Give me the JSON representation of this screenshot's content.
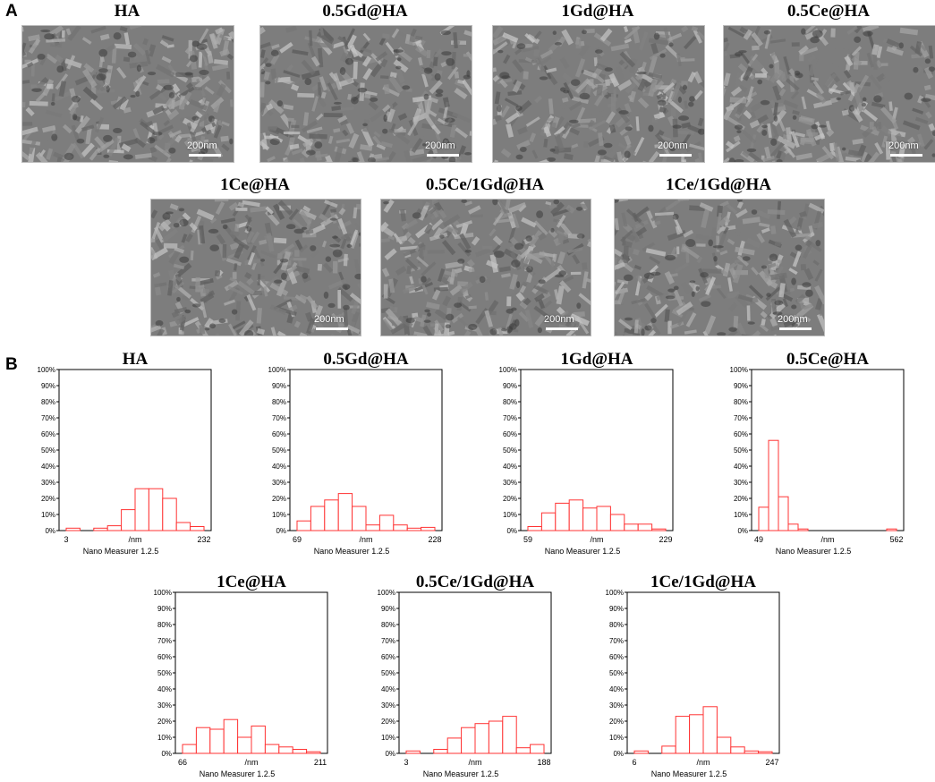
{
  "panel_labels": {
    "a": "A",
    "b": "B"
  },
  "scale_bar_label": "200nm",
  "sem_images": [
    {
      "title": "HA"
    },
    {
      "title": "0.5Gd@HA"
    },
    {
      "title": "1Gd@HA"
    },
    {
      "title": "0.5Ce@HA"
    },
    {
      "title": "1Ce@HA"
    },
    {
      "title": "0.5Ce/1Gd@HA"
    },
    {
      "title": "1Ce/1Gd@HA"
    }
  ],
  "chart_data": [
    {
      "type": "bar",
      "title": "HA",
      "x_min_label": "3",
      "x_max_label": "232",
      "x_unit_label": "/nm",
      "caption": "Nano Measurer 1.2.5",
      "ylim": [
        0,
        100
      ],
      "y_ticks": [
        "0%",
        "10%",
        "20%",
        "30%",
        "40%",
        "50%",
        "60%",
        "70%",
        "80%",
        "90%",
        "100%"
      ],
      "values": [
        1.5,
        0,
        1.5,
        3,
        13,
        26,
        26,
        20,
        5,
        2.5
      ]
    },
    {
      "type": "bar",
      "title": "0.5Gd@HA",
      "x_min_label": "69",
      "x_max_label": "228",
      "x_unit_label": "/nm",
      "caption": "Nano Measurer 1.2.5",
      "ylim": [
        0,
        100
      ],
      "y_ticks": [
        "0%",
        "10%",
        "20%",
        "30%",
        "40%",
        "50%",
        "60%",
        "70%",
        "80%",
        "90%",
        "100%"
      ],
      "values": [
        6,
        15,
        19,
        23,
        15,
        3.5,
        9.5,
        3.5,
        1.5,
        2
      ]
    },
    {
      "type": "bar",
      "title": "1Gd@HA",
      "x_min_label": "59",
      "x_max_label": "229",
      "x_unit_label": "/nm",
      "caption": "Nano Measurer 1.2.5",
      "ylim": [
        0,
        100
      ],
      "y_ticks": [
        "0%",
        "10%",
        "20%",
        "30%",
        "40%",
        "50%",
        "60%",
        "70%",
        "80%",
        "90%",
        "100%"
      ],
      "values": [
        2.5,
        11,
        17,
        19,
        14,
        15,
        10,
        4,
        4,
        1
      ]
    },
    {
      "type": "bar",
      "title": "0.5Ce@HA",
      "x_min_label": "49",
      "x_max_label": "562",
      "x_unit_label": "/nm",
      "caption": "Nano Measurer 1.2.5",
      "ylim": [
        0,
        100
      ],
      "y_ticks": [
        "0%",
        "10%",
        "20%",
        "30%",
        "40%",
        "50%",
        "60%",
        "70%",
        "80%",
        "90%",
        "100%"
      ],
      "values": [
        14.5,
        56,
        21,
        4,
        1,
        0,
        0,
        0,
        0,
        0,
        0,
        0,
        0,
        1
      ]
    },
    {
      "type": "bar",
      "title": "1Ce@HA",
      "x_min_label": "66",
      "x_max_label": "211",
      "x_unit_label": "/nm",
      "caption": "Nano Measurer 1.2.5",
      "ylim": [
        0,
        100
      ],
      "y_ticks": [
        "0%",
        "10%",
        "20%",
        "30%",
        "40%",
        "50%",
        "60%",
        "70%",
        "80%",
        "90%",
        "100%"
      ],
      "values": [
        5.5,
        16,
        15,
        21,
        10,
        17,
        5.5,
        4,
        2.5,
        1
      ]
    },
    {
      "type": "bar",
      "title": "0.5Ce/1Gd@HA",
      "x_min_label": "3",
      "x_max_label": "188",
      "x_unit_label": "/nm",
      "caption": "Nano Measurer 1.2.5",
      "ylim": [
        0,
        100
      ],
      "y_ticks": [
        "0%",
        "10%",
        "20%",
        "30%",
        "40%",
        "50%",
        "60%",
        "70%",
        "80%",
        "90%",
        "100%"
      ],
      "values": [
        1.5,
        0,
        2.5,
        9.5,
        16,
        18.5,
        20,
        23,
        3.5,
        5.5
      ]
    },
    {
      "type": "bar",
      "title": "1Ce/1Gd@HA",
      "x_min_label": "6",
      "x_max_label": "247",
      "x_unit_label": "/nm",
      "caption": "Nano Measurer 1.2.5",
      "ylim": [
        0,
        100
      ],
      "y_ticks": [
        "0%",
        "10%",
        "20%",
        "30%",
        "40%",
        "50%",
        "60%",
        "70%",
        "80%",
        "90%",
        "100%"
      ],
      "values": [
        1.5,
        0,
        4.5,
        23,
        24,
        29,
        10,
        4,
        1.5,
        1
      ]
    }
  ],
  "colors": {
    "bar_stroke": "#ff3333",
    "bar_fill": "#ffffff",
    "sem_base": "#7d7d7d"
  }
}
